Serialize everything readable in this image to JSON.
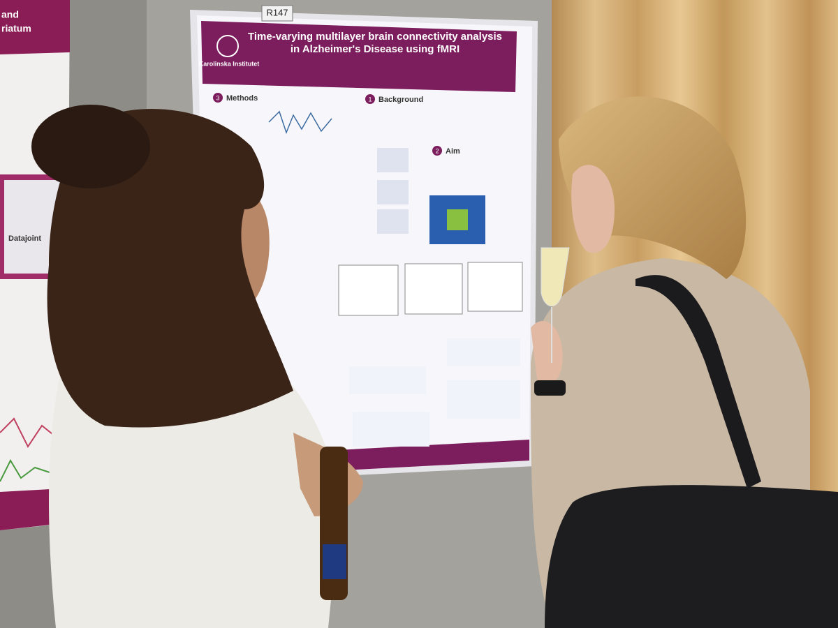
{
  "poster_label": "R147",
  "poster": {
    "title": "Time-varying multilayer brain connectivity analysis in Alzheimer's Disease using fMRI",
    "institution": "Karolinska Institutet",
    "sections": [
      {
        "number": "1",
        "heading": "Background"
      },
      {
        "number": "2",
        "heading": "Aim"
      },
      {
        "number": "3",
        "heading": "Methods"
      }
    ]
  },
  "left_poster": {
    "texts": [
      "and",
      "riatum",
      "Datajoint"
    ]
  }
}
